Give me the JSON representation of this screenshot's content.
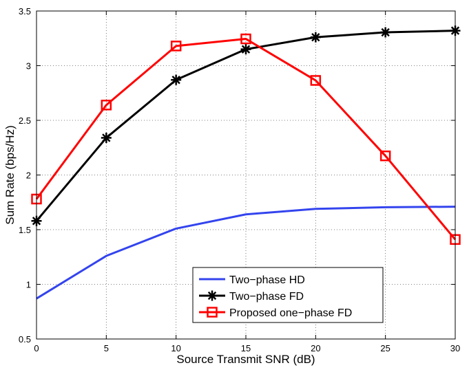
{
  "chart_data": {
    "type": "line",
    "title": "",
    "xlabel": "Source Transmit SNR (dB)",
    "ylabel": "Sum Rate (bps/Hz)",
    "xlim": [
      0,
      30
    ],
    "ylim": [
      0.5,
      3.5
    ],
    "grid": true,
    "legend_position": "bottom-center",
    "x_ticks": [
      0,
      5,
      10,
      15,
      20,
      25,
      30
    ],
    "y_ticks": [
      0.5,
      1,
      1.5,
      2,
      2.5,
      3,
      3.5
    ],
    "x_tick_labels": [
      "0",
      "5",
      "10",
      "15",
      "20",
      "25",
      "30"
    ],
    "y_tick_labels": [
      "0.5",
      "1",
      "1.5",
      "2",
      "2.5",
      "3",
      "3.5"
    ],
    "x": [
      0,
      5,
      10,
      15,
      20,
      25,
      30
    ],
    "series": [
      {
        "name": "Two−phase HD",
        "color": "#3344ee",
        "marker": "none",
        "values": [
          0.87,
          1.26,
          1.51,
          1.64,
          1.69,
          1.705,
          1.71
        ]
      },
      {
        "name": "Two−phase FD",
        "color": "#000000",
        "marker": "asterisk",
        "values": [
          1.58,
          2.34,
          2.87,
          3.15,
          3.26,
          3.305,
          3.32
        ]
      },
      {
        "name": "Proposed one−phase FD",
        "color": "#ff0000",
        "marker": "square",
        "values": [
          1.78,
          2.64,
          3.18,
          3.245,
          2.865,
          2.175,
          1.41
        ]
      }
    ]
  }
}
